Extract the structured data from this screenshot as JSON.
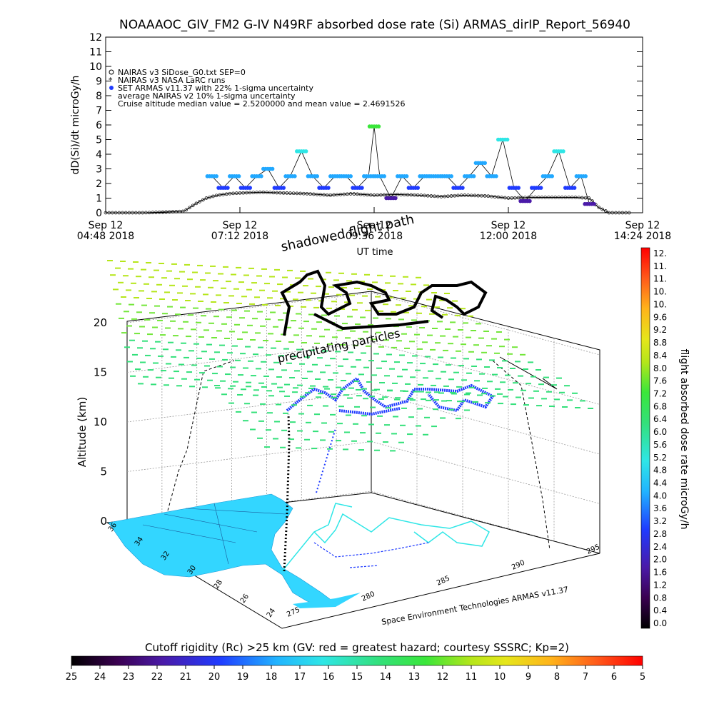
{
  "title": "NOAAAOC_GIV_FM2 G-IV    N49RF  absorbed dose rate (Si) ARMAS_dirIP_Report_56940",
  "colors": {
    "nairas_sidose": "#000000",
    "nairas_larc": "#000000",
    "armas_marker": "#1f3bff",
    "land": "#33d6ff",
    "frame": "#000000"
  },
  "chart_data": [
    {
      "type": "line",
      "title": "",
      "xlabel": "UT time",
      "ylabel": "dD(Si)/dt microGy/h",
      "xlim_hours": [
        4.8,
        14.4
      ],
      "ylim": [
        0,
        12
      ],
      "x_ticks": [
        {
          "line1": "Sep 12",
          "line2": "04:48 2018"
        },
        {
          "line1": "Sep 12",
          "line2": "07:12 2018"
        },
        {
          "line1": "Sep 12",
          "line2": "09:36 2018"
        },
        {
          "line1": "Sep 12",
          "line2": "12:00 2018"
        },
        {
          "line1": "Sep 12",
          "line2": "14:24 2018"
        }
      ],
      "y_ticks": [
        "0",
        "1",
        "2",
        "3",
        "4",
        "5",
        "6",
        "7",
        "8",
        "9",
        "10",
        "11",
        "12"
      ],
      "legend": {
        "placement": "top-left",
        "entries": [
          "NAIRAS v3 SiDose_G0.txt SEP=0",
          "NAIRAS v3 NASA LaRC runs",
          "SET ARMAS v11.37 with 22% 1-sigma uncertainty",
          "average NAIRAS v2 10% 1-sigma uncertainty",
          "Cruise altitude median value = 2.5200000 and mean value = 2.4691526"
        ]
      },
      "series": [
        {
          "name": "NAIRAS v3 SiDose_G0.txt SEP=0",
          "x": [
            4.8,
            5.5,
            6.2,
            6.4,
            6.6,
            6.8,
            7.0,
            7.2,
            7.6,
            8.0,
            8.4,
            8.8,
            9.2,
            9.6,
            10.0,
            10.4,
            10.8,
            11.2,
            11.6,
            12.0,
            12.4,
            12.8,
            13.2,
            13.45,
            13.6,
            13.8,
            14.2
          ],
          "y": [
            0,
            0,
            0.1,
            0.6,
            1.0,
            1.2,
            1.3,
            1.35,
            1.4,
            1.35,
            1.3,
            1.2,
            1.3,
            1.2,
            1.25,
            1.2,
            1.1,
            1.2,
            1.15,
            1.0,
            1.05,
            1.05,
            1.05,
            1.0,
            0.4,
            0.0,
            0.0
          ]
        },
        {
          "name": "SET ARMAS v11.37 with 22% 1-sigma uncertainty",
          "x": [
            6.7,
            6.9,
            7.1,
            7.3,
            7.5,
            7.7,
            7.9,
            8.1,
            8.3,
            8.5,
            8.7,
            8.9,
            9.1,
            9.3,
            9.5,
            9.6,
            9.7,
            9.9,
            10.1,
            10.3,
            10.5,
            10.7,
            10.9,
            11.1,
            11.3,
            11.5,
            11.7,
            11.9,
            12.1,
            12.3,
            12.5,
            12.7,
            12.9,
            13.1,
            13.3,
            13.45
          ],
          "y": [
            2.5,
            1.7,
            2.5,
            1.7,
            2.5,
            3.0,
            1.7,
            2.5,
            4.2,
            2.5,
            1.7,
            2.5,
            2.5,
            1.7,
            2.5,
            5.9,
            2.5,
            1.0,
            2.5,
            1.7,
            2.5,
            2.5,
            2.5,
            1.7,
            2.5,
            3.4,
            2.5,
            5.0,
            1.7,
            0.8,
            1.7,
            2.5,
            4.2,
            1.7,
            2.5,
            0.6
          ]
        }
      ]
    },
    {
      "type": "scatter",
      "title": "",
      "zlabel": "Altitude (km)",
      "z_ticks": [
        "0",
        "5",
        "10",
        "15",
        "20"
      ],
      "lat_ticks": [
        "36",
        "34",
        "32",
        "30",
        "28",
        "26",
        "24"
      ],
      "lon_ticks": [
        "275",
        "280",
        "285",
        "290",
        "295"
      ],
      "annotations": [
        "shadowed flight path",
        "precipitating particles",
        "Space Environment Technologies ARMAS v11.37"
      ],
      "colorbar_right": {
        "label": "flight absorbed dose rate microGy/h",
        "ticks": [
          "12.",
          "11.",
          "11.",
          "10.",
          "10.",
          "9.6",
          "9.2",
          "8.8",
          "8.4",
          "8.0",
          "7.6",
          "7.2",
          "6.8",
          "6.4",
          "6.0",
          "5.6",
          "5.2",
          "4.8",
          "4.4",
          "4.0",
          "3.6",
          "3.2",
          "2.8",
          "2.4",
          "2.0",
          "1.6",
          "1.2",
          "0.8",
          "0.4",
          "0.0"
        ]
      },
      "colorbar_bottom": {
        "label": "Cutoff rigidity (Rc) >25 km (GV: red = greatest hazard; courtesy SSSRC; Kp=2)",
        "ticks": [
          "25",
          "24",
          "23",
          "22",
          "21",
          "20",
          "19",
          "18",
          "17",
          "16",
          "15",
          "14",
          "13",
          "12",
          "11",
          "10",
          "9",
          "8",
          "7",
          "6",
          "5"
        ]
      }
    }
  ]
}
